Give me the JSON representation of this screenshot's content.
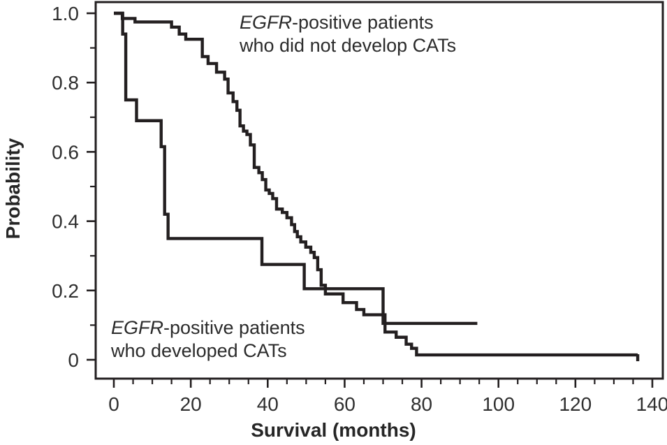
{
  "figure": {
    "background": "#ffffff",
    "line_color": "#231f20",
    "text_color": "#2b2b2b"
  },
  "chart_data": {
    "type": "line",
    "subtype": "kaplan-meier-step-survival",
    "title": "",
    "xlabel": "Survival (months)",
    "ylabel": "Probability",
    "xlim": [
      0,
      140
    ],
    "ylim": [
      0,
      1.0
    ],
    "grid": false,
    "legend_position": "annotations-inside-plot",
    "x_ticks": [
      {
        "v": 0,
        "label": "0"
      },
      {
        "v": 20,
        "label": "20"
      },
      {
        "v": 40,
        "label": "40"
      },
      {
        "v": 60,
        "label": "60"
      },
      {
        "v": 80,
        "label": "80"
      },
      {
        "v": 100,
        "label": "100"
      },
      {
        "v": 120,
        "label": "120"
      },
      {
        "v": 140,
        "label": "140"
      }
    ],
    "x_minor_ticks": [
      5,
      10,
      15,
      25,
      30,
      35,
      45,
      50,
      55,
      65,
      70,
      75,
      85,
      90,
      95,
      105,
      110,
      115,
      125,
      130,
      135
    ],
    "y_ticks": [
      {
        "v": 1.0,
        "label": "1.0"
      },
      {
        "v": 0.8,
        "label": "0.8"
      },
      {
        "v": 0.6,
        "label": "0.6"
      },
      {
        "v": 0.4,
        "label": "0.4"
      },
      {
        "v": 0.2,
        "label": "0.2"
      },
      {
        "v": 0,
        "label": "0"
      }
    ],
    "y_minor_ticks": [
      0.1,
      0.3,
      0.5,
      0.7,
      0.9
    ],
    "series": [
      {
        "name": "egfr-positive-no-cats",
        "annotation": {
          "em": "EGFR",
          "rest": "-positive patients",
          "line2": "who did not develop CATs"
        },
        "steps": [
          [
            0,
            1.0
          ],
          [
            2.2,
            0.985
          ],
          [
            5.5,
            0.975
          ],
          [
            15,
            0.96
          ],
          [
            17,
            0.94
          ],
          [
            18.7,
            0.925
          ],
          [
            23,
            0.875
          ],
          [
            24.5,
            0.855
          ],
          [
            26.7,
            0.83
          ],
          [
            28.8,
            0.81
          ],
          [
            29.7,
            0.77
          ],
          [
            31,
            0.745
          ],
          [
            32,
            0.72
          ],
          [
            32.8,
            0.675
          ],
          [
            33.7,
            0.66
          ],
          [
            34.6,
            0.65
          ],
          [
            35.5,
            0.62
          ],
          [
            36.5,
            0.555
          ],
          [
            37.7,
            0.54
          ],
          [
            38.6,
            0.52
          ],
          [
            39.5,
            0.49
          ],
          [
            40.4,
            0.48
          ],
          [
            41.3,
            0.465
          ],
          [
            42.3,
            0.435
          ],
          [
            43.8,
            0.425
          ],
          [
            45,
            0.41
          ],
          [
            46.2,
            0.39
          ],
          [
            47,
            0.37
          ],
          [
            47.7,
            0.355
          ],
          [
            48.6,
            0.34
          ],
          [
            49.9,
            0.325
          ],
          [
            51.2,
            0.31
          ],
          [
            52.1,
            0.295
          ],
          [
            53,
            0.26
          ],
          [
            53.9,
            0.215
          ],
          [
            55,
            0.19
          ],
          [
            59.6,
            0.165
          ],
          [
            63.1,
            0.145
          ],
          [
            65,
            0.13
          ],
          [
            70.5,
            0.08
          ],
          [
            73.4,
            0.065
          ],
          [
            76,
            0.045
          ],
          [
            77.4,
            0.033
          ],
          [
            78.7,
            0.014
          ]
        ],
        "end_t": 136.2,
        "censor_tick_at_end": true
      },
      {
        "name": "egfr-positive-cats",
        "annotation": {
          "em": "EGFR",
          "rest": "-positive patients",
          "line2": "who developed CATs"
        },
        "steps": [
          [
            0,
            1.0
          ],
          [
            2.3,
            0.94
          ],
          [
            3.1,
            0.75
          ],
          [
            5.9,
            0.69
          ],
          [
            12.3,
            0.615
          ],
          [
            13.2,
            0.42
          ],
          [
            14.1,
            0.35
          ],
          [
            38.5,
            0.275
          ],
          [
            49.5,
            0.205
          ],
          [
            70,
            0.105
          ]
        ],
        "end_t": 94.5,
        "censor_tick_at_end": false
      }
    ]
  }
}
